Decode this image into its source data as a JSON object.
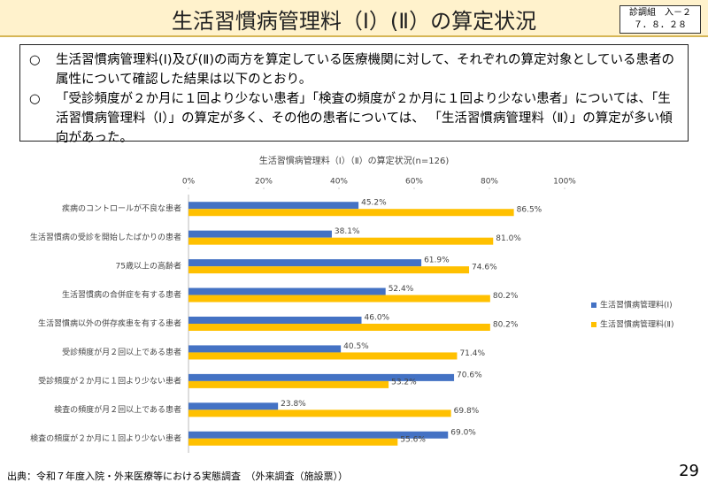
{
  "header": {
    "title": "生活習慣病管理料（Ⅰ）(Ⅱ）の算定状況",
    "doc_id": "診調組　入－２",
    "date": "７．８．２８"
  },
  "notes": [
    {
      "marker": "○",
      "text": "生活習慣病管理料(Ⅰ)及び(Ⅱ)の両方を算定している医療機関に対して、それぞれの算定対象としている患者の属性について確認した結果は以下のとおり。"
    },
    {
      "marker": "○",
      "text": "「受診頻度が２か月に１回より少ない患者」「検査の頻度が２か月に１回より少ない患者」については、「生活習慣病管理料（Ⅰ）」の算定が多く、その他の患者については、 「生活習慣病管理料（Ⅱ）」の算定が多い傾向があった。"
    }
  ],
  "chart_data": {
    "type": "bar",
    "orientation": "horizontal",
    "title": "生活習慣病管理料（Ⅰ）（Ⅱ）の算定状況(n=126)",
    "categories": [
      "疾病のコントロールが不良な患者",
      "生活習慣病の受診を開始したばかりの患者",
      "75歳以上の高齢者",
      "生活習慣病の合併症を有する患者",
      "生活習慣病以外の併存疾患を有する患者",
      "受診頻度が月２回以上である患者",
      "受診頻度が２か月に１回より少ない患者",
      "検査の頻度が月２回以上である患者",
      "検査の頻度が２か月に１回より少ない患者"
    ],
    "series": [
      {
        "name": "生活習慣病管理料(Ⅰ)",
        "color": "#4472c4",
        "values": [
          45.2,
          38.1,
          61.9,
          52.4,
          46.0,
          40.5,
          70.6,
          23.8,
          69.0
        ],
        "value_labels": [
          "45.2%",
          "38.1%",
          "61.9%",
          "52.4%",
          "46.0%",
          "40.5%",
          "70.6%",
          "23.8%",
          "69.0%"
        ]
      },
      {
        "name": "生活習慣病管理料(Ⅱ)",
        "color": "#ffc000",
        "values": [
          86.5,
          81.0,
          74.6,
          80.2,
          80.2,
          71.4,
          53.2,
          69.8,
          55.6
        ],
        "value_labels": [
          "86.5%",
          "81.0%",
          "74.6%",
          "80.2%",
          "80.2%",
          "71.4%",
          "53.2%",
          "69.8%",
          "55.6%"
        ]
      }
    ],
    "xlim": [
      0,
      100
    ],
    "xticks": [
      {
        "value": 0,
        "label": "0%"
      },
      {
        "value": 20,
        "label": "20%"
      },
      {
        "value": 40,
        "label": "40%"
      },
      {
        "value": 60,
        "label": "60%"
      },
      {
        "value": 80,
        "label": "80%"
      },
      {
        "value": 100,
        "label": "100%"
      }
    ],
    "legend": "right"
  },
  "footer": {
    "source": "出典：令和７年度入院・外来医療等における実態調査　（外来調査（施設票））",
    "page": "29"
  }
}
